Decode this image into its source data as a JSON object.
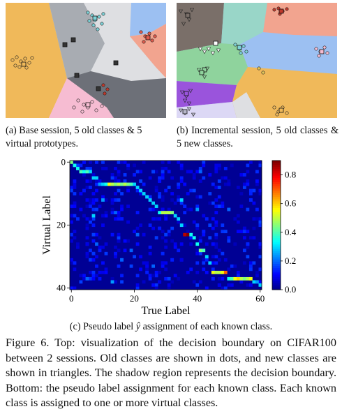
{
  "subfigure_captions": {
    "a": "(a) Base session, 5 old classes & 5 virtual prototypes.",
    "b": "(b) Incremental session, 5 old classes & 5 new classes.",
    "c_prefix": "(c) Pseudo label ",
    "c_symbol": "ŷ",
    "c_suffix": " assignment of each known class."
  },
  "figure_caption": "Figure 6. Top: visualization of the decision boundary on CIFAR100 between 2 sessions. Old classes are shown in dots, and new classes are shown in triangles. The shadow region represents the decision boundary. Bottom: the pseudo label assignment for each known class. Each known class is assigned to one or more virtual classes.",
  "colors": {
    "region_orange": "#f0b95a",
    "region_gray": "#a8acb2",
    "region_lightgray": "#dedfe2",
    "region_darkgray": "#6d7078",
    "region_blue": "#9cc0f2",
    "region_salmon": "#f2a48f",
    "region_pink": "#f6bcd2",
    "region_green": "#8fd39d",
    "region_purple": "#9a54dc",
    "region_brown": "#7a6f69",
    "region_teal": "#99d6c8",
    "region_lavender": "#dcd8f5",
    "colormap": "jet"
  },
  "chart_data": {
    "type": "heatmap",
    "xlabel": "True Label",
    "ylabel": "Virtual Label",
    "xlim": [
      0,
      61
    ],
    "ylim": [
      41,
      0
    ],
    "x_ticks": [
      0,
      20,
      40,
      60
    ],
    "y_ticks": [
      0,
      20,
      40
    ],
    "colorbar": {
      "min": 0.0,
      "max": 0.9,
      "ticks": [
        0.0,
        0.2,
        0.4,
        0.6,
        0.8
      ]
    },
    "assignments": [
      {
        "x": 0,
        "y": 0,
        "v": 0.45
      },
      {
        "x": 1,
        "y": 1,
        "v": 0.35
      },
      {
        "x": 2,
        "y": 2,
        "v": 0.35
      },
      {
        "x": 3,
        "y": 3,
        "v": 0.4
      },
      {
        "x": 4,
        "y": 3,
        "v": 0.35
      },
      {
        "x": 5,
        "y": 3,
        "v": 0.4
      },
      {
        "x": 6,
        "y": 3,
        "v": 0.3
      },
      {
        "x": 7,
        "y": 5,
        "v": 0.3
      },
      {
        "x": 8,
        "y": 5,
        "v": 0.3
      },
      {
        "x": 9,
        "y": 7,
        "v": 0.25
      },
      {
        "x": 10,
        "y": 7,
        "v": 0.3
      },
      {
        "x": 11,
        "y": 7,
        "v": 0.35
      },
      {
        "x": 12,
        "y": 7,
        "v": 0.55
      },
      {
        "x": 13,
        "y": 7,
        "v": 0.5
      },
      {
        "x": 14,
        "y": 7,
        "v": 0.45
      },
      {
        "x": 15,
        "y": 7,
        "v": 0.5
      },
      {
        "x": 16,
        "y": 7,
        "v": 0.45
      },
      {
        "x": 17,
        "y": 7,
        "v": 0.5
      },
      {
        "x": 18,
        "y": 7,
        "v": 0.45
      },
      {
        "x": 19,
        "y": 7,
        "v": 0.4
      },
      {
        "x": 20,
        "y": 7,
        "v": 0.3
      },
      {
        "x": 21,
        "y": 8,
        "v": 0.3
      },
      {
        "x": 22,
        "y": 9,
        "v": 0.3
      },
      {
        "x": 23,
        "y": 10,
        "v": 0.3
      },
      {
        "x": 24,
        "y": 11,
        "v": 0.3
      },
      {
        "x": 25,
        "y": 12,
        "v": 0.3
      },
      {
        "x": 26,
        "y": 13,
        "v": 0.3
      },
      {
        "x": 27,
        "y": 14,
        "v": 0.3
      },
      {
        "x": 28,
        "y": 16,
        "v": 0.35
      },
      {
        "x": 29,
        "y": 16,
        "v": 0.5
      },
      {
        "x": 30,
        "y": 16,
        "v": 0.5
      },
      {
        "x": 31,
        "y": 16,
        "v": 0.5
      },
      {
        "x": 32,
        "y": 16,
        "v": 0.45
      },
      {
        "x": 33,
        "y": 17,
        "v": 0.3
      },
      {
        "x": 34,
        "y": 18,
        "v": 0.3
      },
      {
        "x": 35,
        "y": 20,
        "v": 0.3
      },
      {
        "x": 36,
        "y": 23,
        "v": 0.85
      },
      {
        "x": 37,
        "y": 23,
        "v": 0.9
      },
      {
        "x": 38,
        "y": 23,
        "v": 0.35
      },
      {
        "x": 39,
        "y": 24,
        "v": 0.35
      },
      {
        "x": 40,
        "y": 26,
        "v": 0.35
      },
      {
        "x": 41,
        "y": 28,
        "v": 0.45
      },
      {
        "x": 42,
        "y": 28,
        "v": 0.4
      },
      {
        "x": 43,
        "y": 30,
        "v": 0.3
      },
      {
        "x": 44,
        "y": 32,
        "v": 0.3
      },
      {
        "x": 45,
        "y": 35,
        "v": 0.55
      },
      {
        "x": 46,
        "y": 35,
        "v": 0.5
      },
      {
        "x": 47,
        "y": 35,
        "v": 0.5
      },
      {
        "x": 48,
        "y": 35,
        "v": 0.55
      },
      {
        "x": 49,
        "y": 35,
        "v": 0.7
      },
      {
        "x": 50,
        "y": 37,
        "v": 0.35
      },
      {
        "x": 51,
        "y": 37,
        "v": 0.4
      },
      {
        "x": 52,
        "y": 37,
        "v": 0.55
      },
      {
        "x": 53,
        "y": 37,
        "v": 0.6
      },
      {
        "x": 54,
        "y": 37,
        "v": 0.5
      },
      {
        "x": 55,
        "y": 37,
        "v": 0.45
      },
      {
        "x": 56,
        "y": 37,
        "v": 0.5
      },
      {
        "x": 57,
        "y": 37,
        "v": 0.55
      },
      {
        "x": 58,
        "y": 38,
        "v": 0.3
      },
      {
        "x": 59,
        "y": 38,
        "v": 0.25
      },
      {
        "x": 60,
        "y": 39,
        "v": 0.3
      },
      {
        "x": 10,
        "y": 12,
        "v": 0.25
      },
      {
        "x": 14,
        "y": 16,
        "v": 0.2
      },
      {
        "x": 7,
        "y": 17,
        "v": 0.3
      },
      {
        "x": 8,
        "y": 26,
        "v": 0.2
      },
      {
        "x": 13,
        "y": 38,
        "v": 0.25
      },
      {
        "x": 5,
        "y": 37,
        "v": 0.2
      },
      {
        "x": 19,
        "y": 28,
        "v": 0.2
      },
      {
        "x": 21,
        "y": 23,
        "v": 0.2
      },
      {
        "x": 35,
        "y": 12,
        "v": 0.3
      },
      {
        "x": 40,
        "y": 15,
        "v": 0.25
      },
      {
        "x": 41,
        "y": 3,
        "v": 0.2
      },
      {
        "x": 50,
        "y": 15,
        "v": 0.2
      },
      {
        "x": 16,
        "y": 31,
        "v": 0.2
      },
      {
        "x": 26,
        "y": 33,
        "v": 0.2
      }
    ]
  }
}
